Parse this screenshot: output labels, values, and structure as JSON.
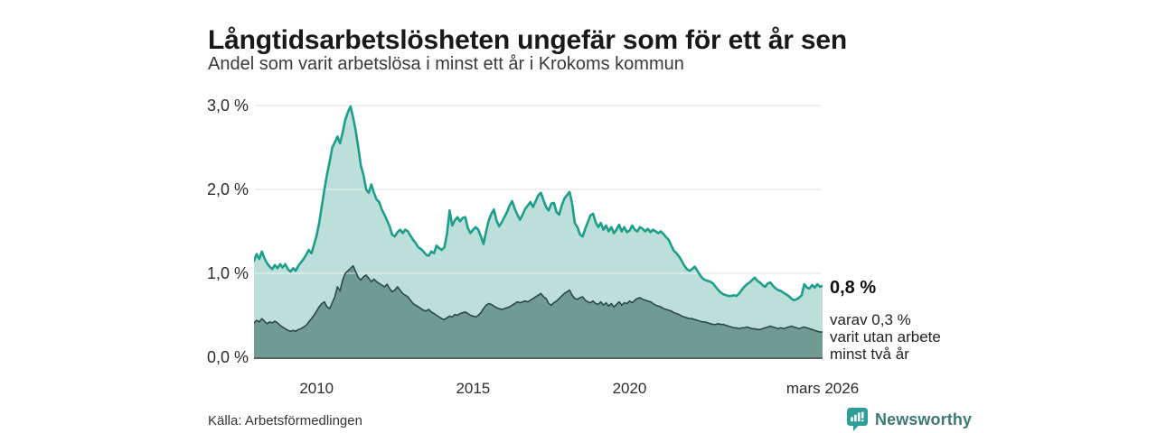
{
  "header": {
    "title": "Långtidsarbetslösheten ungefär som för ett år sen",
    "subtitle": "Andel som varit arbetslösa i minst ett år i Krokoms kommun"
  },
  "annotations": {
    "latest_total": "0,8 %",
    "latest_note": "varav 0,3 %\nvarit utan arbete\nminst två år"
  },
  "source": {
    "label": "Källa: Arbetsförmedlingen"
  },
  "branding": {
    "wordmark": "Newsworthy",
    "icon": "newsworthy-speech-bubble-bar-chart",
    "icon_color": "#2E9E99",
    "text_color": "#3C7877"
  },
  "colors": {
    "background": "#FFFFFF",
    "gridline": "#DADADA",
    "gridline_over_fill": "rgba(255,255,255,0.5)",
    "axis_baseline": "#2B2B2B",
    "axis_text": "#2B2B2B",
    "title_text": "#191919"
  },
  "chart_data": {
    "type": "area",
    "title": "Långtidsarbetslösheten ungefär som för ett år sen",
    "subtitle": "Andel som varit arbetslösa i minst ett år i Krokoms kommun",
    "xlabel": "",
    "ylabel": "",
    "x_start_year": 2008,
    "x_step_months": 1,
    "x_end": "mars 2026",
    "ylim": [
      0,
      3.05
    ],
    "grid": true,
    "legend_position": "none",
    "y_ticks": [
      {
        "label": "0,0 %",
        "value": 0
      },
      {
        "label": "1,0 %",
        "value": 1
      },
      {
        "label": "2,0 %",
        "value": 2
      },
      {
        "label": "3,0 %",
        "value": 3
      }
    ],
    "x_ticks": [
      {
        "label": "2010",
        "t": 2010.0
      },
      {
        "label": "2015",
        "t": 2015.0
      },
      {
        "label": "2020",
        "t": 2020.0
      },
      {
        "label": "mars 2026",
        "t": 2026.1667
      }
    ],
    "series": [
      {
        "name": "Andel som varit arbetslösa minst ett år",
        "line_color": "#1D9E8B",
        "fill_color": "#BCDFDA",
        "line_width": 2.6,
        "latest_label": "0,8 %",
        "values": [
          1.15,
          1.23,
          1.17,
          1.26,
          1.18,
          1.12,
          1.08,
          1.05,
          1.1,
          1.06,
          1.11,
          1.07,
          1.11,
          1.05,
          1.02,
          1.06,
          1.03,
          1.09,
          1.13,
          1.17,
          1.22,
          1.28,
          1.24,
          1.34,
          1.45,
          1.6,
          1.8,
          2.0,
          2.18,
          2.33,
          2.5,
          2.56,
          2.63,
          2.55,
          2.68,
          2.83,
          2.92,
          2.99,
          2.86,
          2.7,
          2.5,
          2.28,
          2.17,
          2.0,
          1.96,
          2.06,
          1.96,
          1.88,
          1.85,
          1.76,
          1.7,
          1.63,
          1.56,
          1.46,
          1.44,
          1.49,
          1.52,
          1.48,
          1.52,
          1.5,
          1.45,
          1.4,
          1.36,
          1.31,
          1.29,
          1.26,
          1.22,
          1.21,
          1.26,
          1.24,
          1.33,
          1.3,
          1.28,
          1.31,
          1.47,
          1.75,
          1.57,
          1.63,
          1.67,
          1.62,
          1.66,
          1.67,
          1.54,
          1.48,
          1.52,
          1.55,
          1.52,
          1.44,
          1.35,
          1.5,
          1.63,
          1.71,
          1.76,
          1.63,
          1.56,
          1.61,
          1.67,
          1.73,
          1.81,
          1.86,
          1.77,
          1.7,
          1.64,
          1.7,
          1.77,
          1.81,
          1.85,
          1.79,
          1.86,
          1.93,
          1.96,
          1.87,
          1.79,
          1.75,
          1.83,
          1.84,
          1.73,
          1.7,
          1.81,
          1.89,
          1.93,
          1.97,
          1.83,
          1.6,
          1.55,
          1.46,
          1.44,
          1.53,
          1.61,
          1.69,
          1.71,
          1.61,
          1.55,
          1.6,
          1.52,
          1.57,
          1.5,
          1.55,
          1.48,
          1.52,
          1.58,
          1.5,
          1.55,
          1.49,
          1.51,
          1.57,
          1.52,
          1.5,
          1.55,
          1.53,
          1.5,
          1.53,
          1.49,
          1.52,
          1.5,
          1.48,
          1.5,
          1.47,
          1.43,
          1.4,
          1.33,
          1.27,
          1.24,
          1.2,
          1.15,
          1.09,
          1.05,
          1.03,
          1.05,
          1.08,
          1.03,
          0.98,
          0.94,
          0.92,
          0.91,
          0.9,
          0.88,
          0.84,
          0.8,
          0.77,
          0.75,
          0.74,
          0.73,
          0.73,
          0.74,
          0.73,
          0.76,
          0.8,
          0.84,
          0.87,
          0.89,
          0.92,
          0.95,
          0.91,
          0.89,
          0.86,
          0.84,
          0.88,
          0.89,
          0.85,
          0.82,
          0.8,
          0.79,
          0.77,
          0.75,
          0.73,
          0.7,
          0.68,
          0.69,
          0.71,
          0.74,
          0.87,
          0.83,
          0.82,
          0.86,
          0.83,
          0.87,
          0.84,
          0.85
        ]
      },
      {
        "name": "Andel som varit arbetslösa minst två år",
        "line_color": "#2C4945",
        "fill_color": "#6F9B93",
        "line_width": 1.6,
        "latest_label": "0,3 %",
        "values": [
          0.41,
          0.44,
          0.42,
          0.46,
          0.43,
          0.4,
          0.42,
          0.41,
          0.43,
          0.41,
          0.38,
          0.36,
          0.34,
          0.32,
          0.31,
          0.32,
          0.31,
          0.33,
          0.34,
          0.36,
          0.38,
          0.42,
          0.46,
          0.5,
          0.55,
          0.6,
          0.64,
          0.66,
          0.6,
          0.58,
          0.65,
          0.72,
          0.84,
          0.79,
          0.92,
          1.0,
          1.03,
          1.06,
          1.09,
          1.02,
          0.95,
          0.92,
          0.96,
          0.98,
          0.94,
          0.9,
          0.93,
          0.9,
          0.88,
          0.86,
          0.84,
          0.87,
          0.82,
          0.78,
          0.8,
          0.84,
          0.8,
          0.76,
          0.74,
          0.72,
          0.68,
          0.64,
          0.62,
          0.6,
          0.58,
          0.56,
          0.55,
          0.57,
          0.54,
          0.52,
          0.5,
          0.48,
          0.46,
          0.45,
          0.47,
          0.49,
          0.48,
          0.51,
          0.5,
          0.52,
          0.53,
          0.54,
          0.52,
          0.5,
          0.49,
          0.48,
          0.5,
          0.53,
          0.58,
          0.62,
          0.64,
          0.63,
          0.61,
          0.59,
          0.58,
          0.57,
          0.58,
          0.59,
          0.6,
          0.62,
          0.64,
          0.66,
          0.65,
          0.66,
          0.67,
          0.66,
          0.68,
          0.7,
          0.72,
          0.74,
          0.76,
          0.72,
          0.7,
          0.64,
          0.62,
          0.65,
          0.67,
          0.7,
          0.73,
          0.76,
          0.78,
          0.8,
          0.74,
          0.7,
          0.69,
          0.71,
          0.72,
          0.68,
          0.66,
          0.65,
          0.67,
          0.64,
          0.63,
          0.66,
          0.62,
          0.65,
          0.61,
          0.64,
          0.6,
          0.63,
          0.66,
          0.62,
          0.65,
          0.64,
          0.67,
          0.65,
          0.68,
          0.7,
          0.71,
          0.69,
          0.68,
          0.67,
          0.66,
          0.64,
          0.62,
          0.61,
          0.6,
          0.58,
          0.57,
          0.56,
          0.55,
          0.53,
          0.52,
          0.51,
          0.49,
          0.48,
          0.47,
          0.46,
          0.46,
          0.45,
          0.44,
          0.43,
          0.42,
          0.42,
          0.41,
          0.4,
          0.39,
          0.39,
          0.4,
          0.39,
          0.39,
          0.38,
          0.37,
          0.36,
          0.35,
          0.35,
          0.34,
          0.35,
          0.35,
          0.36,
          0.35,
          0.34,
          0.34,
          0.33,
          0.33,
          0.34,
          0.35,
          0.36,
          0.37,
          0.36,
          0.35,
          0.34,
          0.35,
          0.34,
          0.35,
          0.36,
          0.37,
          0.36,
          0.35,
          0.34,
          0.35,
          0.36,
          0.35,
          0.34,
          0.33,
          0.32,
          0.31,
          0.3,
          0.3
        ]
      }
    ]
  }
}
